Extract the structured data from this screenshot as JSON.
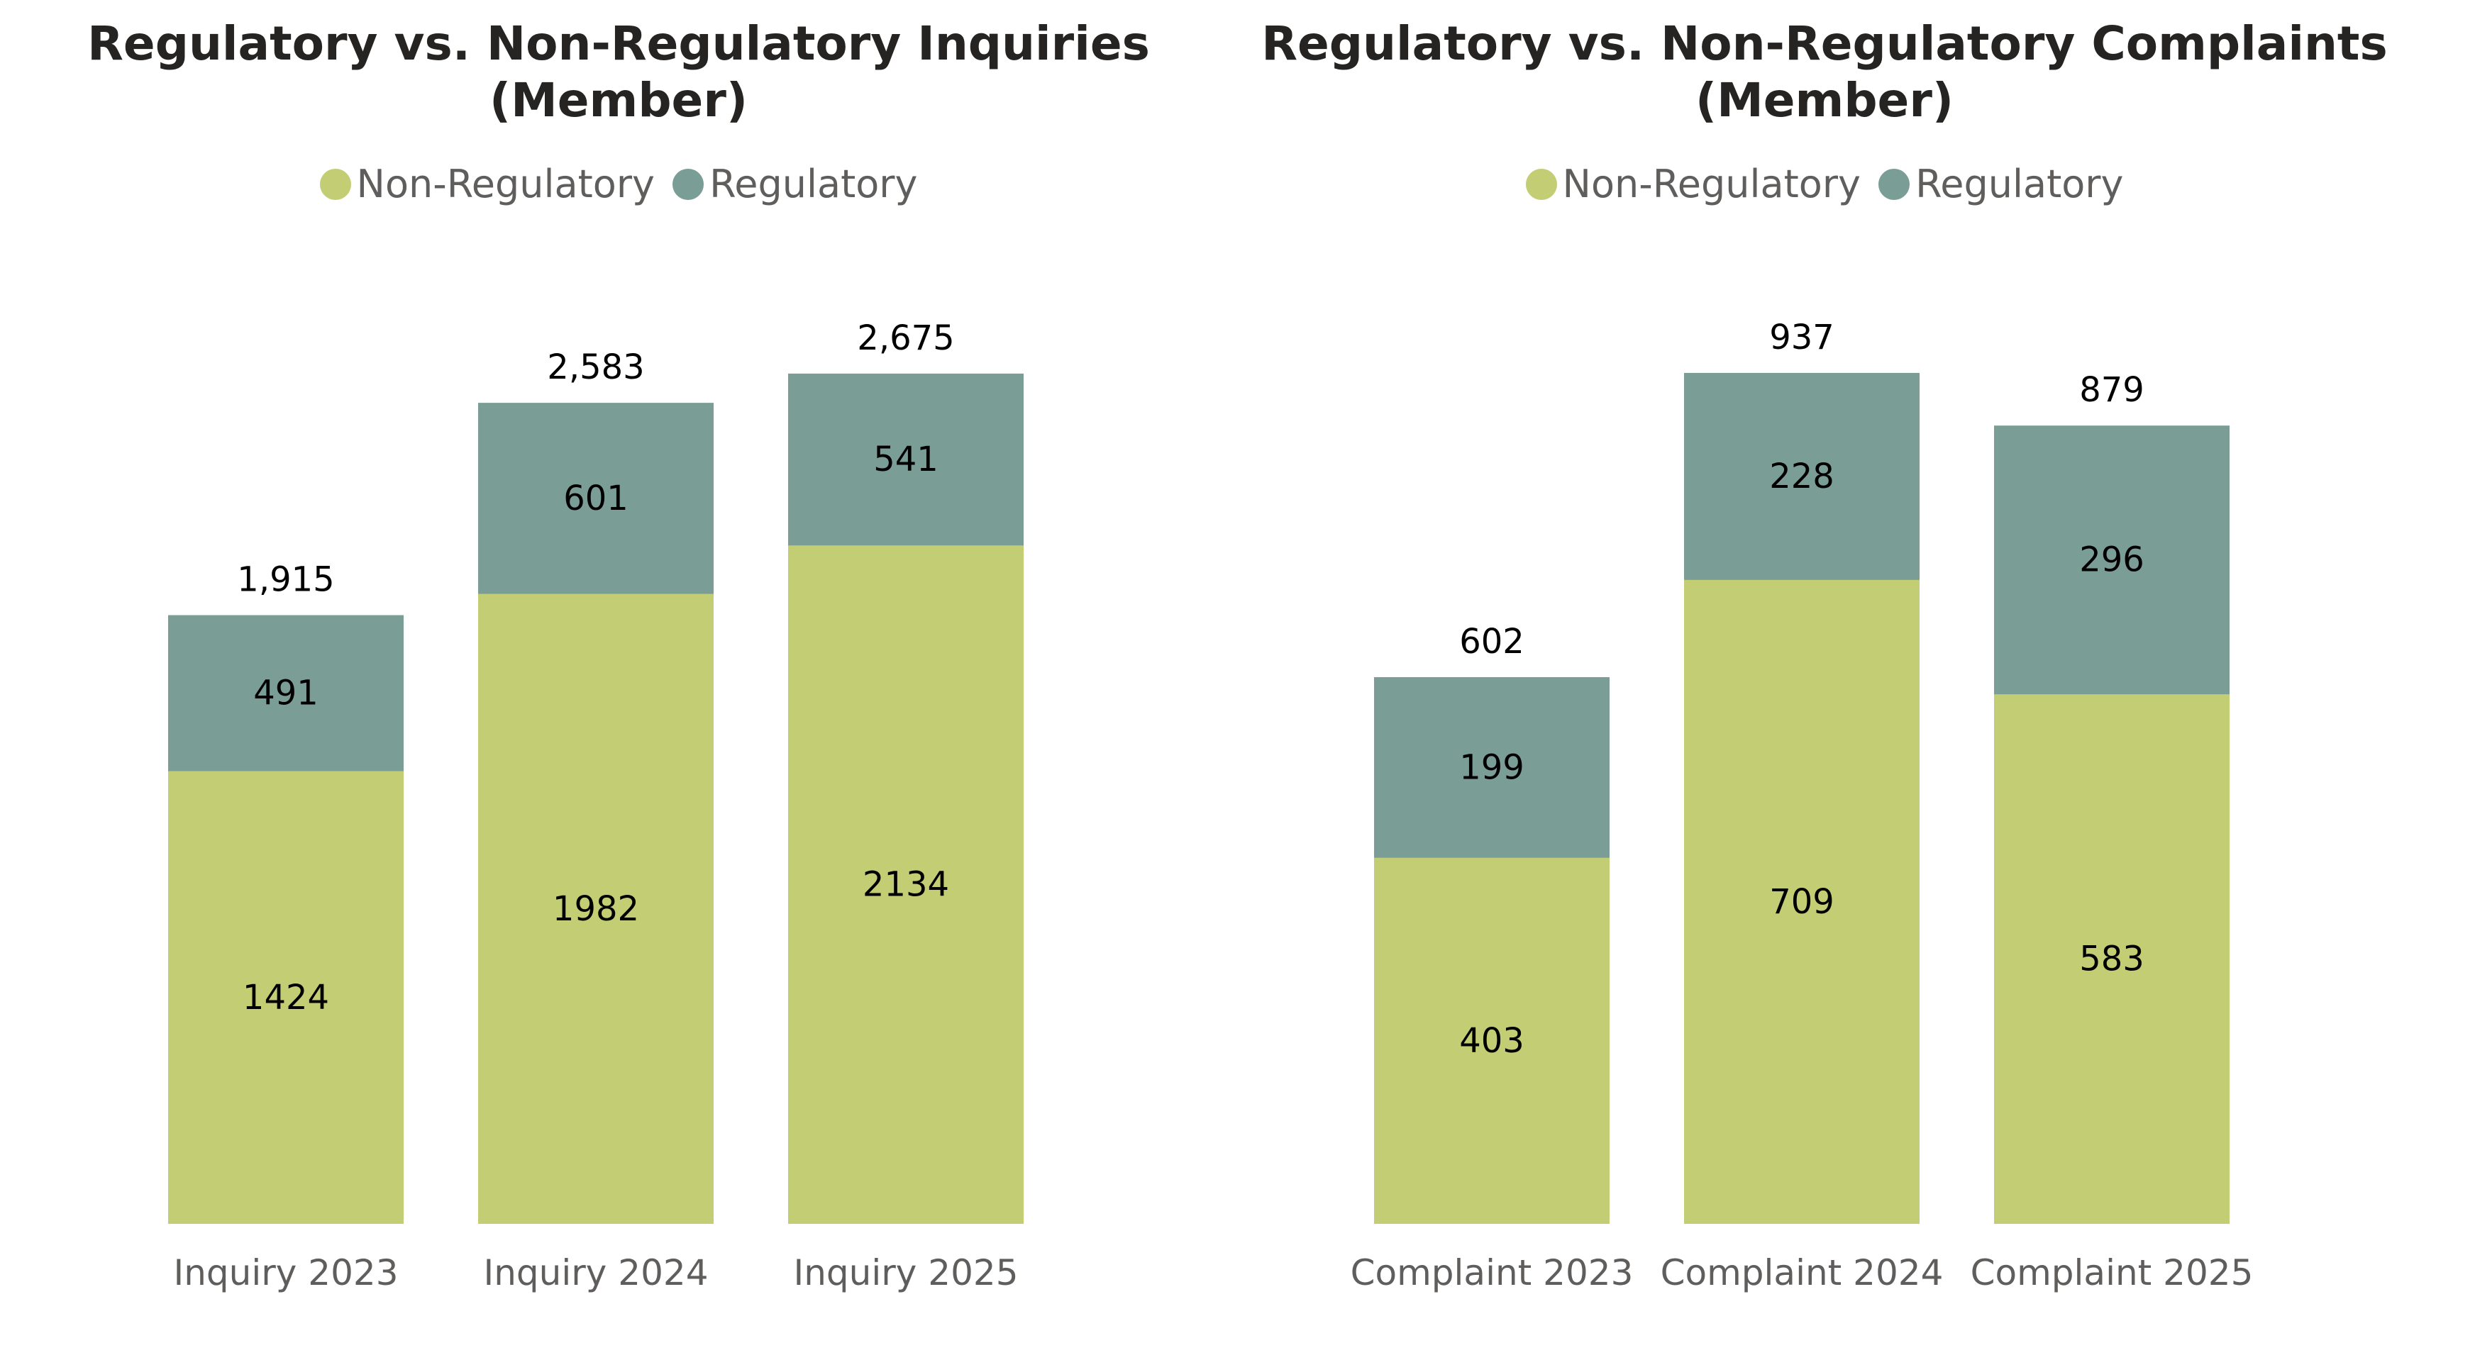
{
  "colors": {
    "non_regulatory": "#c3cd74",
    "regulatory": "#7a9d96"
  },
  "chart_data": [
    {
      "type": "bar",
      "stacked": true,
      "title_line1": "Regulatory vs. Non-Regulatory Inquiries",
      "title_line2": "(Member)",
      "categories": [
        "Inquiry 2023",
        "Inquiry 2024",
        "Inquiry 2025"
      ],
      "series": [
        {
          "name": "Non-Regulatory",
          "values": [
            1424,
            1982,
            2134
          ]
        },
        {
          "name": "Regulatory",
          "values": [
            491,
            601,
            541
          ]
        }
      ],
      "total_labels": [
        "1,915",
        "2,583",
        "2,675"
      ],
      "legend_position": "top-center",
      "grid": false,
      "ylim": [
        0,
        2900
      ]
    },
    {
      "type": "bar",
      "stacked": true,
      "title_line1": "Regulatory vs. Non-Regulatory Complaints",
      "title_line2": "(Member)",
      "categories": [
        "Complaint 2023",
        "Complaint 2024",
        "Complaint 2025"
      ],
      "series": [
        {
          "name": "Non-Regulatory",
          "values": [
            403,
            709,
            583
          ]
        },
        {
          "name": "Regulatory",
          "values": [
            199,
            228,
            296
          ]
        }
      ],
      "total_labels": [
        "602",
        "937",
        "879"
      ],
      "legend_position": "top-center",
      "grid": false,
      "ylim": [
        0,
        1015
      ]
    }
  ]
}
